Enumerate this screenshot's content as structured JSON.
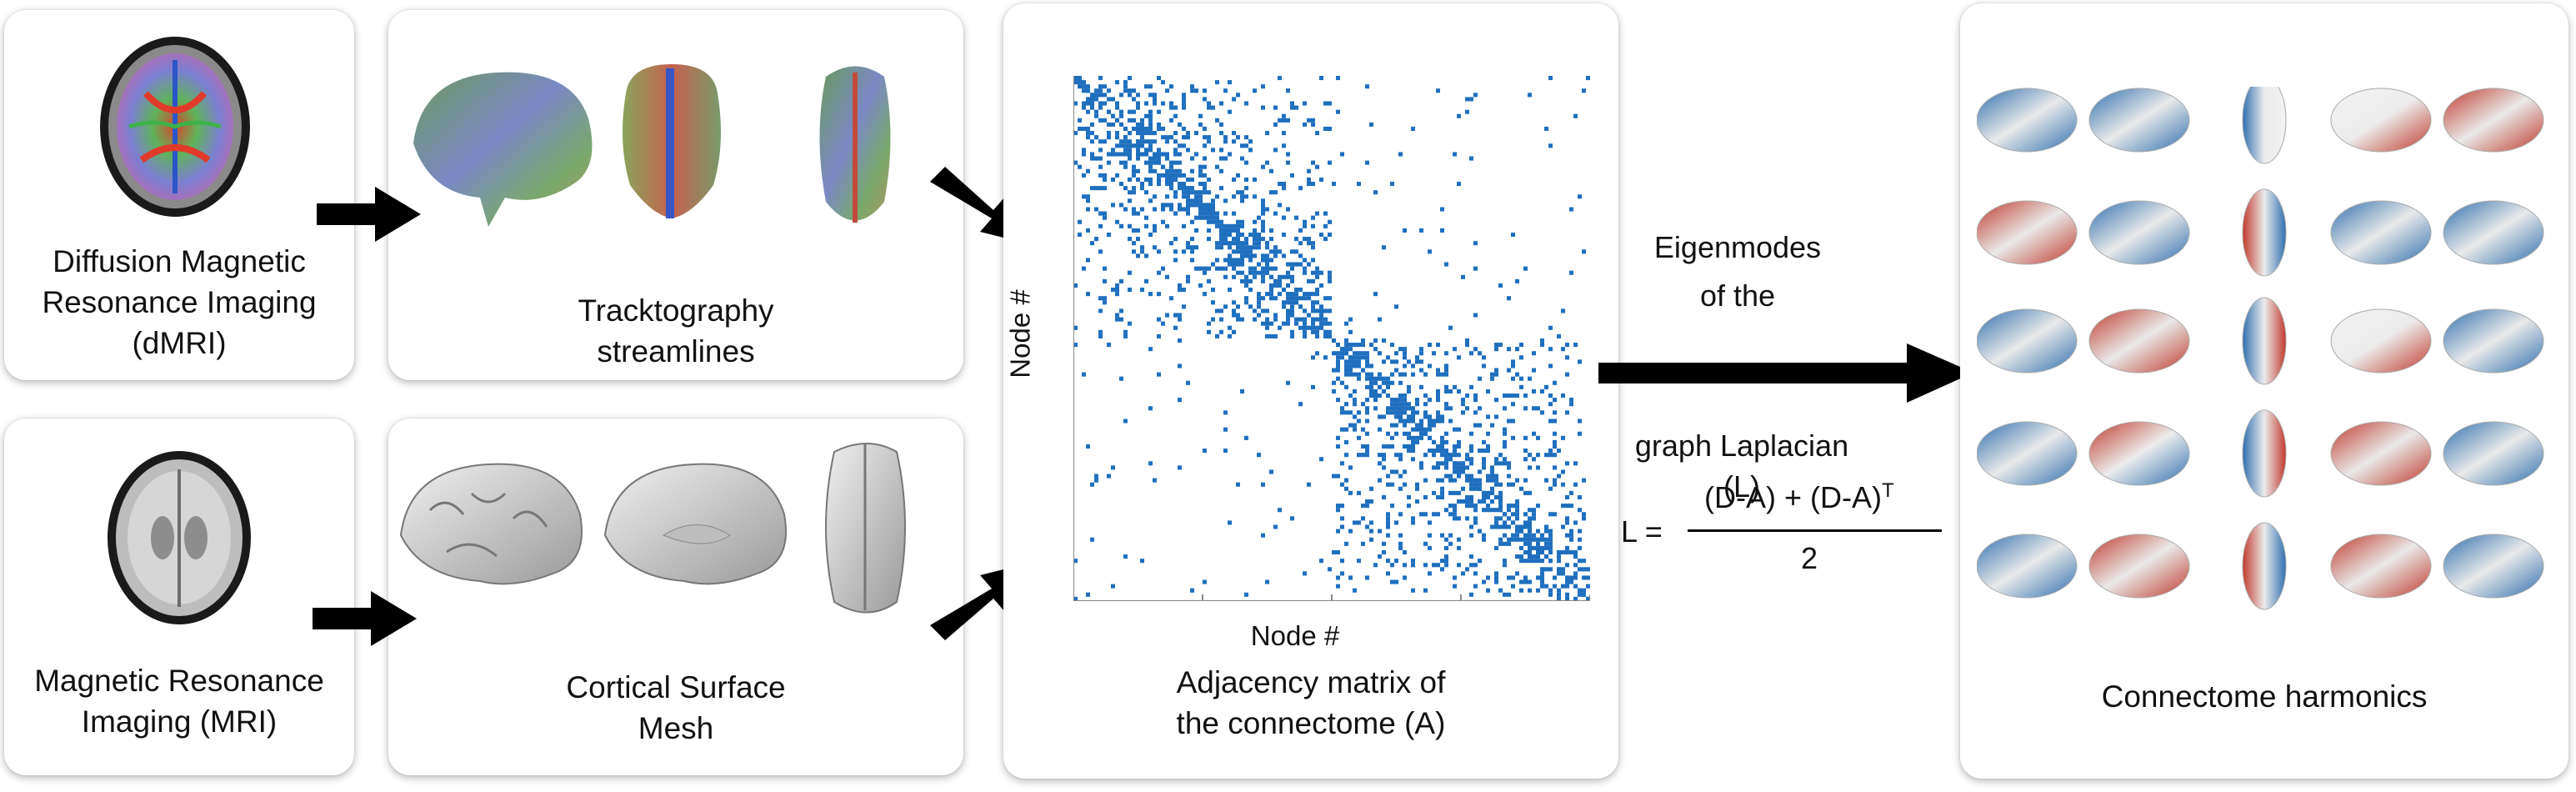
{
  "panels": {
    "dmri": {
      "title_line1": "Diffusion Magnetic",
      "title_line2": "Resonance Imaging",
      "title_line3": "(dMRI)"
    },
    "tract": {
      "title_line1": "Tracktography",
      "title_line2": "streamlines"
    },
    "mri": {
      "title_line1": "Magnetic Resonance",
      "title_line2": "Imaging (MRI)"
    },
    "surface": {
      "title_line1": "Cortical Surface",
      "title_line2": "Mesh"
    },
    "matrix": {
      "xlabel": "Node #",
      "ylabel": "Node #",
      "caption_line1": "Adjacency matrix of",
      "caption_line2": "the connectome (A)"
    },
    "harmonics": {
      "caption": "Connectome harmonics"
    }
  },
  "transition": {
    "line1": "Eigenmodes",
    "line2": "of the",
    "line3": "graph Laplacian (L)",
    "formula_lhs": "L =",
    "formula_numerator": "(D-A) + (D-A)",
    "formula_superscript": "T",
    "formula_denominator": "2"
  },
  "colors": {
    "matrix_blue": "#1f6fbf",
    "arrow": "#000000",
    "harmonic_red": "#c0392b",
    "harmonic_blue": "#2e6fb0"
  }
}
